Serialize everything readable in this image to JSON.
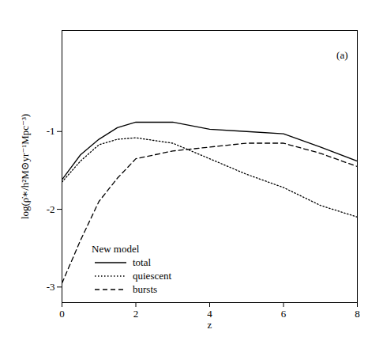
{
  "chart_data": {
    "type": "line",
    "x_label": "z",
    "y_label": "log(ρ̇∗/h²M⊙yr⁻¹Mpc⁻³)",
    "annotations": [
      "(a)"
    ],
    "legend_title": "New model",
    "legend": "lower left",
    "grid": false,
    "x": [
      0,
      0.5,
      1,
      1.5,
      2,
      3,
      4,
      5,
      6,
      7,
      8
    ],
    "series": [
      {
        "name": "total",
        "color": "#000000",
        "line_style": "solid",
        "values": [
          -1.62,
          -1.3,
          -1.1,
          -0.95,
          -0.88,
          -0.88,
          -0.97,
          -1.0,
          -1.03,
          -1.2,
          -1.38
        ]
      },
      {
        "name": "quiescent",
        "color": "#000000",
        "line_style": "dotted",
        "values": [
          -1.65,
          -1.38,
          -1.17,
          -1.1,
          -1.08,
          -1.15,
          -1.35,
          -1.55,
          -1.72,
          -1.95,
          -2.1
        ]
      },
      {
        "name": "bursts",
        "color": "#000000",
        "line_style": "dashed",
        "values": [
          -2.95,
          -2.4,
          -1.9,
          -1.6,
          -1.35,
          -1.25,
          -1.2,
          -1.15,
          -1.15,
          -1.28,
          -1.45
        ]
      }
    ],
    "xlim": [
      0,
      8
    ],
    "xticks": [
      0,
      2,
      4,
      6,
      8
    ],
    "ylim": [
      -3.2,
      0.3
    ],
    "yticks": [
      -1,
      -2,
      -3
    ]
  }
}
